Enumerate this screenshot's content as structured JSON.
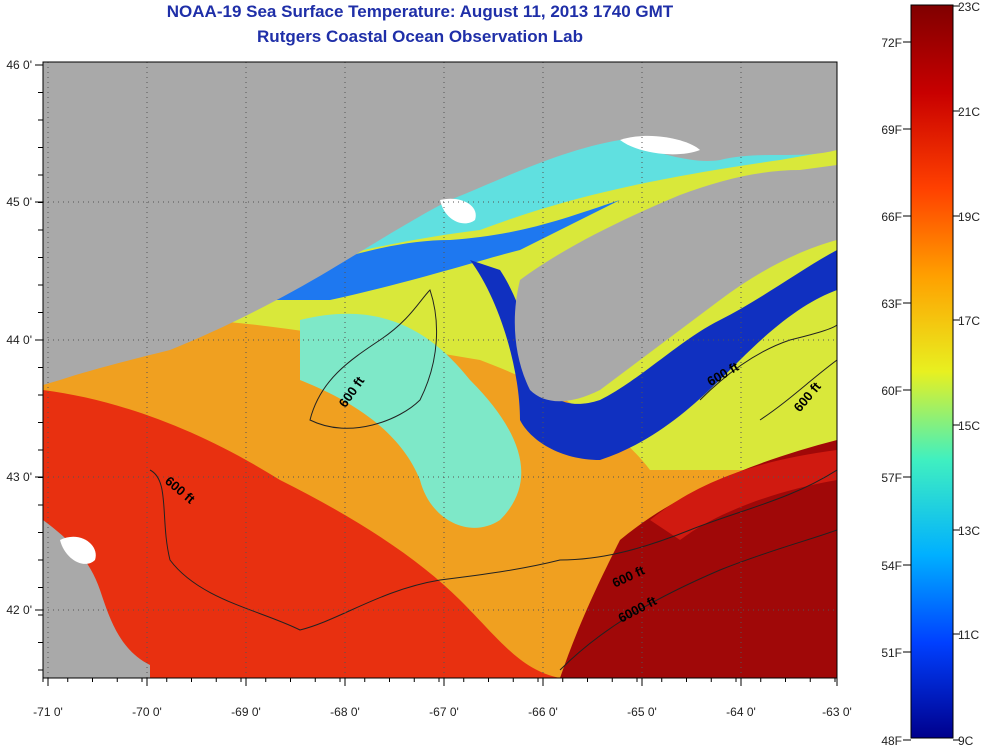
{
  "header": {
    "title": "NOAA-19 Sea Surface Temperature:  August 11, 2013 1740 GMT",
    "subtitle": "Rutgers Coastal Ocean Observation Lab"
  },
  "map": {
    "lon_labels": [
      "-71 0'",
      "-70 0'",
      "-69 0'",
      "-68 0'",
      "-67 0'",
      "-66 0'",
      "-65 0'",
      "-64 0'",
      "-63 0'"
    ],
    "lat_labels": [
      "46 0'",
      "45 0'",
      "44 0'",
      "43 0'",
      "42 0'"
    ],
    "contour_labels": [
      "600 ft",
      "600 ft",
      "600 ft",
      "600 ft",
      "600 ft",
      "6000 ft"
    ],
    "colors": {
      "land": "#a9a9a9",
      "cloud": "#ffffff"
    }
  },
  "colorbar": {
    "celsius_labels": [
      "23C",
      "21C",
      "19C",
      "17C",
      "15C",
      "13C",
      "11C",
      "9C"
    ],
    "fahrenheit_labels": [
      "72F",
      "69F",
      "66F",
      "63F",
      "60F",
      "57F",
      "54F",
      "51F",
      "48F"
    ],
    "range_c": [
      9,
      23
    ]
  },
  "chart_data": {
    "type": "heatmap",
    "title": "NOAA-19 Sea Surface Temperature:  August 11, 2013 1740 GMT",
    "subtitle": "Rutgers Coastal Ocean Observation Lab",
    "x_range": [
      -71,
      -63
    ],
    "y_range": [
      41.5,
      46
    ],
    "colorbar_range_c": [
      9,
      23
    ],
    "colorbar_range_f": [
      48,
      73.4
    ]
  }
}
